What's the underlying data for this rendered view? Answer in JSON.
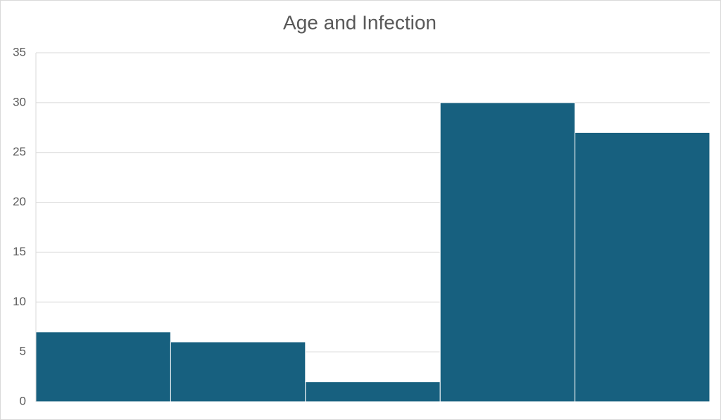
{
  "chart_data": {
    "type": "bar",
    "title": "Age and Infection",
    "categories": [
      null,
      null,
      null,
      null,
      null
    ],
    "values": [
      7,
      6,
      2,
      30,
      27
    ],
    "color": "#17607f",
    "ylim": [
      0,
      35
    ],
    "yticks": [
      0,
      5,
      10,
      15,
      20,
      25,
      30,
      35
    ],
    "grid": true
  }
}
